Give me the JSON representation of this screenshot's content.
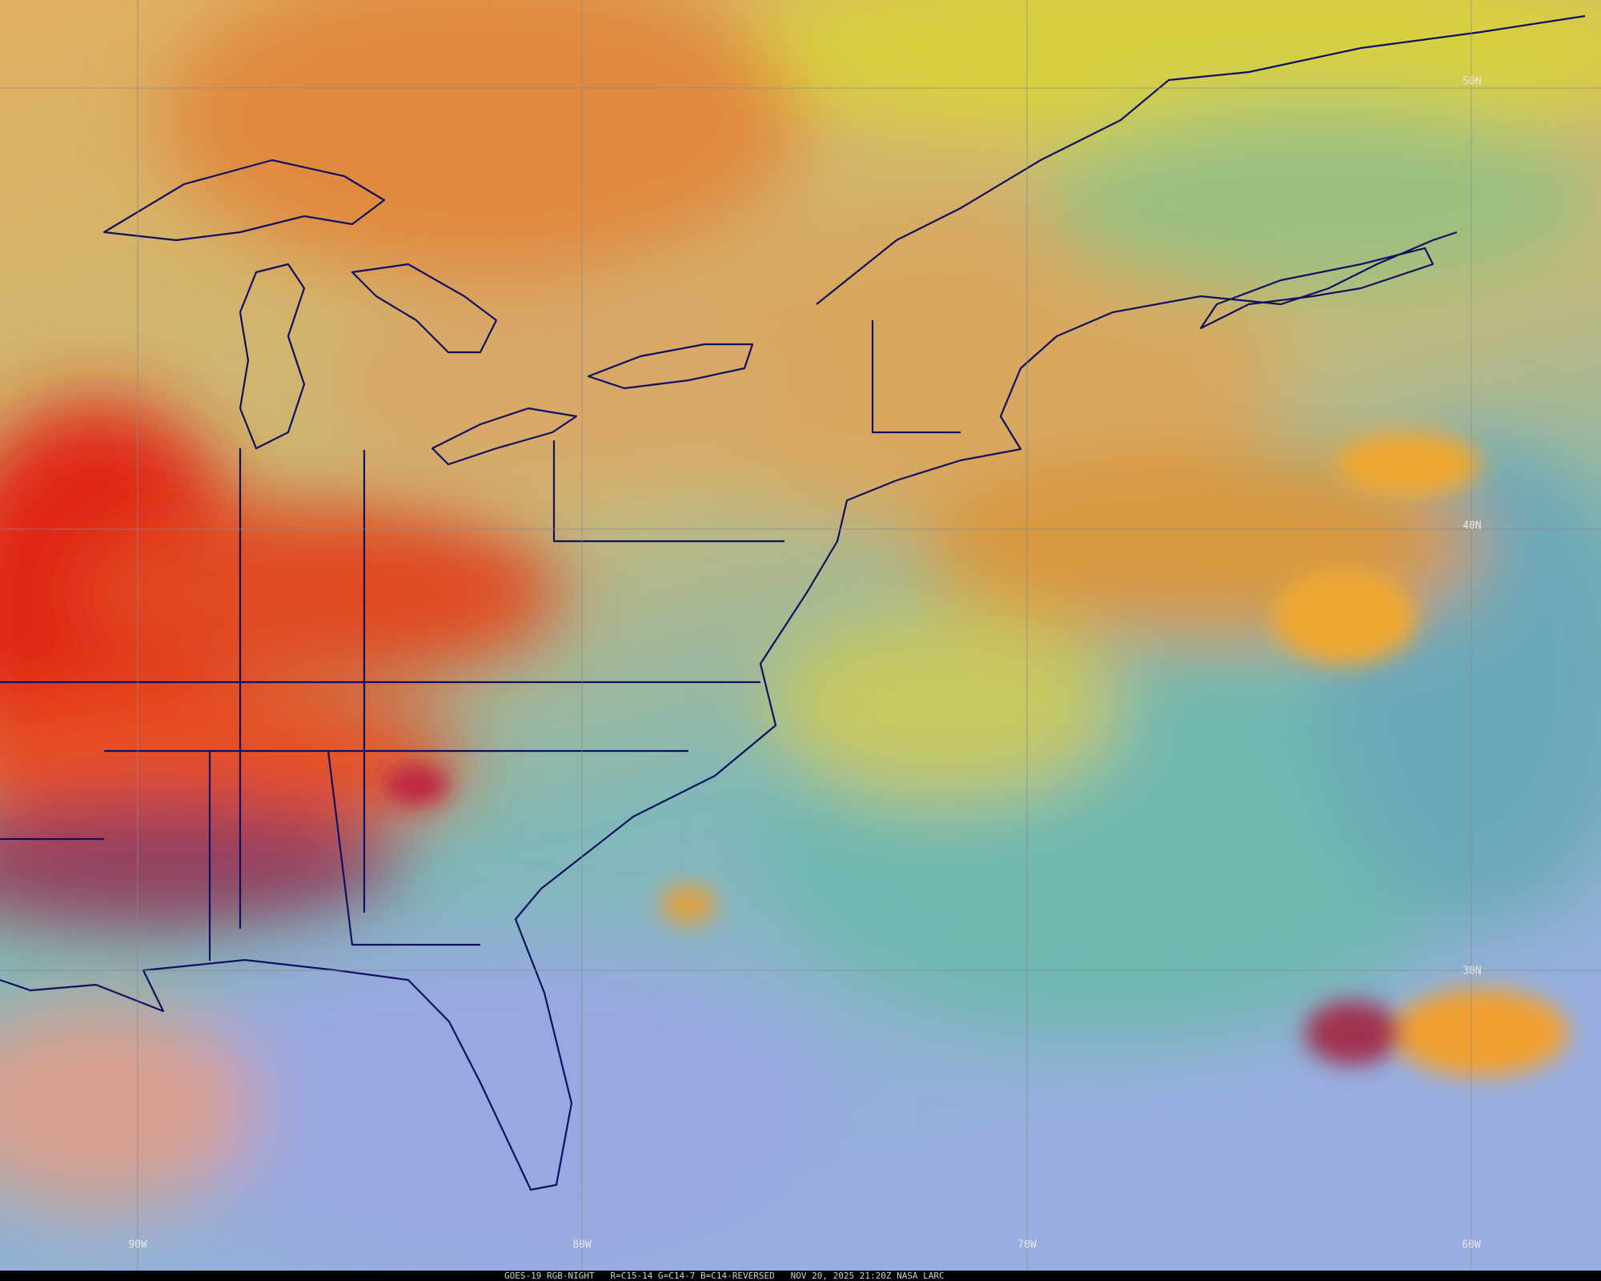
{
  "grid_labels": {
    "latitudes": [
      "50N",
      "40N",
      "30N"
    ],
    "longitudes": [
      "90W",
      "80W",
      "70W",
      "60W"
    ]
  },
  "footer": "GOES-19 RGB-NIGHT   R=C15-14 G=C14-7 B=C14-REVERSED   NOV 20, 2025 21:20Z NASA LARC"
}
